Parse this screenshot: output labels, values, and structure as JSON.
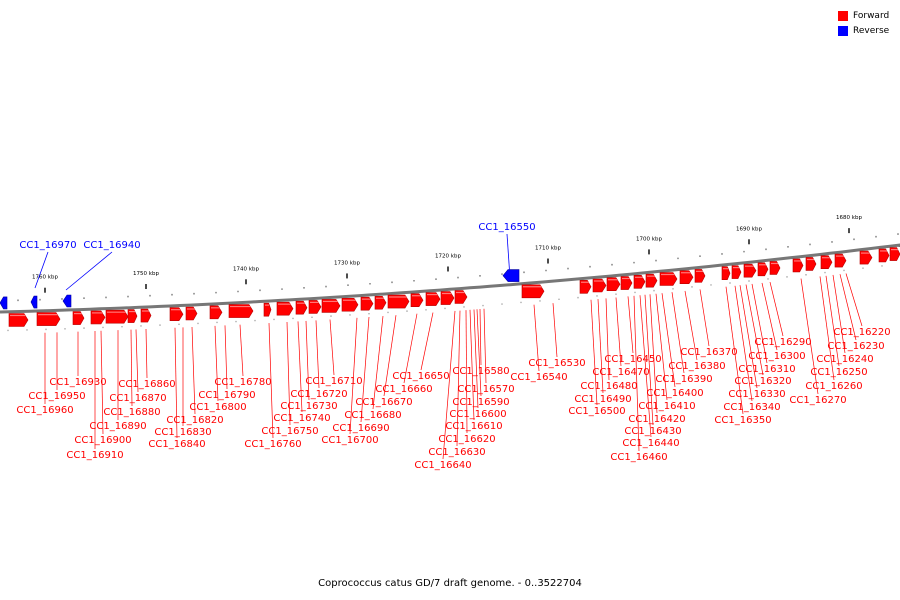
{
  "legend": {
    "forward_label": "Forward",
    "reverse_label": "Reverse",
    "forward_color": "#ff0000",
    "reverse_color": "#0000ff"
  },
  "caption": "Coprococcus catus GD/7 draft genome. - 0..3522704",
  "scale_labels": [
    "1760 kbp",
    "1750 kbp",
    "1740 kbp",
    "1730 kbp",
    "1720 kbp",
    "1710 kbp",
    "1700 kbp",
    "1690 kbp",
    "1680 kbp"
  ],
  "reverse_genes": [
    "CC1_16970",
    "CC1_16940",
    "CC1_16550"
  ],
  "forward_genes": [
    "CC1_16220",
    "CC1_16230",
    "CC1_16240",
    "CC1_16250",
    "CC1_16260",
    "CC1_16270",
    "CC1_16290",
    "CC1_16300",
    "CC1_16310",
    "CC1_16320",
    "CC1_16330",
    "CC1_16340",
    "CC1_16350",
    "CC1_16370",
    "CC1_16380",
    "CC1_16390",
    "CC1_16400",
    "CC1_16410",
    "CC1_16420",
    "CC1_16430",
    "CC1_16440",
    "CC1_16450",
    "CC1_16460",
    "CC1_16470",
    "CC1_16480",
    "CC1_16490",
    "CC1_16500",
    "CC1_16530",
    "CC1_16540",
    "CC1_16570",
    "CC1_16580",
    "CC1_16590",
    "CC1_16600",
    "CC1_16610",
    "CC1_16620",
    "CC1_16630",
    "CC1_16640",
    "CC1_16650",
    "CC1_16660",
    "CC1_16670",
    "CC1_16680",
    "CC1_16690",
    "CC1_16700",
    "CC1_16710",
    "CC1_16720",
    "CC1_16730",
    "CC1_16740",
    "CC1_16750",
    "CC1_16760",
    "CC1_16780",
    "CC1_16790",
    "CC1_16800",
    "CC1_16820",
    "CC1_16830",
    "CC1_16840",
    "CC1_16860",
    "CC1_16870",
    "CC1_16880",
    "CC1_16890",
    "CC1_16900",
    "CC1_16910",
    "CC1_16930",
    "CC1_16950",
    "CC1_16960"
  ]
}
